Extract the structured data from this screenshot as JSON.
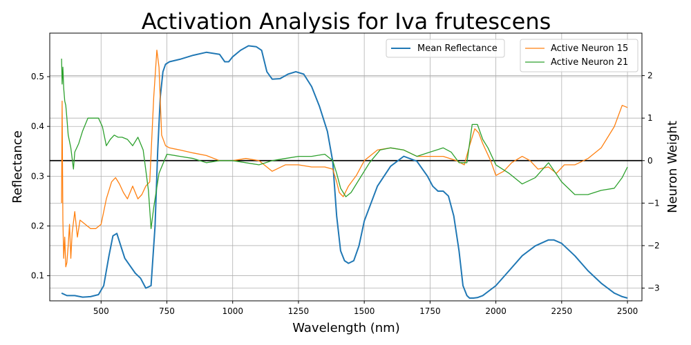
{
  "chart_data": {
    "type": "line",
    "title": "Activation Analysis for Iva frutescens",
    "xlabel": "Wavelength (nm)",
    "ylabel_left": "Reflectance",
    "ylabel_right": "Neuron Weight",
    "xlim": [
      305,
      2555
    ],
    "ylim_left": [
      0.0495,
      0.5875
    ],
    "ylim_right": [
      -3.3,
      3.0
    ],
    "x_ticks": [
      500,
      750,
      1000,
      1250,
      1500,
      1750,
      2000,
      2250,
      2500
    ],
    "y_ticks_left": [
      0.1,
      0.2,
      0.3,
      0.4,
      0.5
    ],
    "y_ticks_right": [
      -3,
      -2,
      -1,
      0,
      1,
      2
    ],
    "y_tick_labels_right": [
      "−3",
      "−2",
      "−1",
      "0",
      "1",
      "2"
    ],
    "grid": true,
    "zero_line_right": 0,
    "legend_left": {
      "placement": "top-center",
      "entries": [
        "Mean Reflectance"
      ]
    },
    "legend_right": {
      "placement": "top-right",
      "entries": [
        "Active Neuron 15",
        "Active Neuron 21"
      ]
    },
    "series": [
      {
        "name": "Mean Reflectance",
        "axis": "left",
        "color": "#1f77b4",
        "x": [
          350,
          370,
          400,
          430,
          460,
          490,
          510,
          530,
          545,
          560,
          575,
          590,
          610,
          630,
          650,
          670,
          690,
          705,
          715,
          725,
          735,
          745,
          760,
          800,
          850,
          900,
          950,
          970,
          985,
          1000,
          1030,
          1060,
          1090,
          1110,
          1130,
          1150,
          1180,
          1210,
          1240,
          1270,
          1300,
          1330,
          1360,
          1380,
          1395,
          1410,
          1425,
          1440,
          1460,
          1480,
          1500,
          1550,
          1600,
          1650,
          1700,
          1740,
          1760,
          1780,
          1800,
          1820,
          1840,
          1860,
          1875,
          1890,
          1900,
          1915,
          1930,
          1950,
          2000,
          2050,
          2100,
          2150,
          2200,
          2220,
          2250,
          2300,
          2350,
          2400,
          2450,
          2480,
          2500
        ],
        "y": [
          0.065,
          0.06,
          0.06,
          0.057,
          0.058,
          0.062,
          0.08,
          0.14,
          0.18,
          0.185,
          0.16,
          0.135,
          0.12,
          0.105,
          0.095,
          0.075,
          0.08,
          0.2,
          0.35,
          0.46,
          0.51,
          0.525,
          0.53,
          0.535,
          0.543,
          0.549,
          0.545,
          0.53,
          0.53,
          0.54,
          0.553,
          0.562,
          0.56,
          0.553,
          0.51,
          0.495,
          0.496,
          0.505,
          0.51,
          0.505,
          0.48,
          0.44,
          0.39,
          0.33,
          0.22,
          0.15,
          0.13,
          0.125,
          0.13,
          0.16,
          0.21,
          0.28,
          0.32,
          0.34,
          0.33,
          0.3,
          0.28,
          0.27,
          0.27,
          0.26,
          0.22,
          0.15,
          0.08,
          0.06,
          0.055,
          0.055,
          0.056,
          0.06,
          0.08,
          0.11,
          0.14,
          0.16,
          0.172,
          0.172,
          0.165,
          0.14,
          0.11,
          0.085,
          0.065,
          0.058,
          0.055
        ]
      },
      {
        "name": "Active Neuron 15",
        "axis": "right",
        "color": "#ff7f0e",
        "x": [
          350,
          352,
          355,
          358,
          362,
          366,
          370,
          375,
          380,
          385,
          390,
          400,
          410,
          420,
          440,
          460,
          480,
          500,
          520,
          540,
          555,
          570,
          585,
          600,
          620,
          640,
          655,
          670,
          685,
          700,
          712,
          720,
          730,
          745,
          760,
          800,
          850,
          900,
          950,
          1000,
          1050,
          1100,
          1150,
          1200,
          1250,
          1300,
          1350,
          1380,
          1395,
          1405,
          1420,
          1440,
          1470,
          1500,
          1550,
          1600,
          1650,
          1700,
          1750,
          1800,
          1850,
          1880,
          1900,
          1920,
          1935,
          1950,
          1980,
          2000,
          2030,
          2060,
          2100,
          2130,
          2160,
          2200,
          2230,
          2260,
          2300,
          2350,
          2400,
          2450,
          2480,
          2500
        ],
        "y": [
          -1.0,
          1.4,
          -1.4,
          -2.3,
          -1.8,
          -2.5,
          -2.4,
          -2.0,
          -1.5,
          -2.3,
          -1.7,
          -1.2,
          -1.8,
          -1.4,
          -1.5,
          -1.6,
          -1.6,
          -1.5,
          -0.9,
          -0.5,
          -0.4,
          -0.55,
          -0.75,
          -0.9,
          -0.6,
          -0.9,
          -0.8,
          -0.6,
          -0.5,
          1.5,
          2.6,
          2.2,
          0.6,
          0.35,
          0.3,
          0.25,
          0.18,
          0.12,
          0.0,
          0.0,
          0.05,
          0.0,
          -0.25,
          -0.1,
          -0.1,
          -0.15,
          -0.15,
          -0.2,
          -0.5,
          -0.75,
          -0.85,
          -0.6,
          -0.35,
          0.0,
          0.25,
          0.3,
          0.25,
          0.1,
          0.1,
          0.1,
          0.0,
          -0.1,
          0.35,
          0.75,
          0.65,
          0.4,
          0.0,
          -0.35,
          -0.25,
          -0.05,
          0.1,
          0.0,
          -0.2,
          -0.15,
          -0.3,
          -0.1,
          -0.1,
          0.05,
          0.3,
          0.8,
          1.3,
          1.25
        ]
      },
      {
        "name": "Active Neuron 21",
        "axis": "right",
        "color": "#2ca02c",
        "x": [
          350,
          352,
          355,
          358,
          362,
          366,
          370,
          375,
          385,
          395,
          400,
          415,
          430,
          450,
          470,
          490,
          505,
          520,
          535,
          550,
          565,
          580,
          600,
          620,
          640,
          660,
          680,
          690,
          700,
          720,
          750,
          800,
          850,
          900,
          950,
          1000,
          1050,
          1100,
          1150,
          1200,
          1250,
          1300,
          1350,
          1380,
          1395,
          1410,
          1430,
          1450,
          1480,
          1520,
          1560,
          1600,
          1650,
          1700,
          1750,
          1800,
          1830,
          1860,
          1890,
          1910,
          1930,
          1950,
          1970,
          2000,
          2050,
          2100,
          2150,
          2200,
          2250,
          2300,
          2350,
          2400,
          2450,
          2480,
          2500
        ],
        "y": [
          2.4,
          1.8,
          2.2,
          1.7,
          1.4,
          1.3,
          1.0,
          0.6,
          0.3,
          -0.2,
          0.2,
          0.4,
          0.7,
          1.0,
          1.0,
          1.0,
          0.8,
          0.35,
          0.5,
          0.6,
          0.55,
          0.55,
          0.5,
          0.35,
          0.55,
          0.25,
          -0.7,
          -1.6,
          -1.1,
          -0.3,
          0.15,
          0.1,
          0.05,
          -0.05,
          0.0,
          0.0,
          -0.05,
          -0.1,
          0.0,
          0.05,
          0.1,
          0.1,
          0.15,
          0.0,
          -0.3,
          -0.65,
          -0.85,
          -0.75,
          -0.45,
          -0.05,
          0.25,
          0.3,
          0.25,
          0.1,
          0.2,
          0.3,
          0.2,
          -0.05,
          -0.05,
          0.85,
          0.85,
          0.5,
          0.3,
          -0.1,
          -0.3,
          -0.55,
          -0.4,
          -0.05,
          -0.5,
          -0.8,
          -0.8,
          -0.7,
          -0.65,
          -0.4,
          -0.15
        ]
      }
    ]
  }
}
